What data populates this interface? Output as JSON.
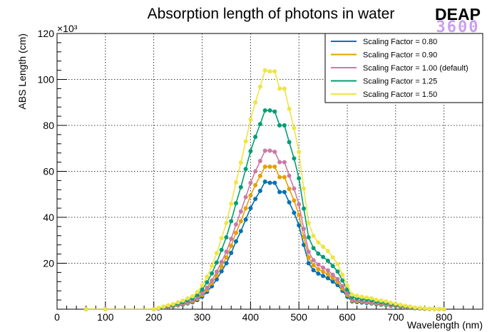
{
  "logo": {
    "top": "DEAP",
    "bottom": "3600"
  },
  "chart_data": {
    "type": "line",
    "title": "Absorption length of photons in water",
    "xlabel": "Wavelength (nm)",
    "ylabel": "ABS Length (cm)",
    "y_multiplier_label": "×10³",
    "xlim": [
      0,
      880
    ],
    "ylim": [
      0,
      120000
    ],
    "x_ticks": [
      0,
      100,
      200,
      300,
      400,
      500,
      600,
      700,
      800
    ],
    "y_ticks": [
      20000,
      40000,
      60000,
      80000,
      100000,
      120000
    ],
    "x_tick_labels": [
      "0",
      "100",
      "200",
      "300",
      "400",
      "500",
      "600",
      "700",
      "800"
    ],
    "y_tick_labels": [
      "20",
      "40",
      "60",
      "80",
      "100",
      "120"
    ],
    "grid": true,
    "legend_position": "top-right",
    "x": [
      60,
      100,
      200,
      210,
      220,
      230,
      240,
      250,
      260,
      270,
      280,
      290,
      300,
      310,
      320,
      330,
      340,
      350,
      360,
      370,
      380,
      390,
      400,
      410,
      420,
      430,
      440,
      450,
      460,
      470,
      480,
      490,
      500,
      510,
      520,
      530,
      540,
      550,
      560,
      570,
      580,
      590,
      600,
      610,
      620,
      630,
      640,
      650,
      660,
      670,
      680,
      690,
      700,
      710,
      720,
      730,
      740,
      750,
      760,
      770,
      780,
      790,
      800
    ],
    "series": [
      {
        "name": "Scaling Factor = 0.80",
        "color": "#0072b2",
        "values": [
          0,
          0,
          0,
          300,
          600,
          900,
          1200,
          1600,
          2000,
          2500,
          3000,
          4000,
          5500,
          7500,
          10000,
          13000,
          16500,
          20000,
          24500,
          29500,
          34000,
          39000,
          44000,
          48000,
          51500,
          55500,
          55000,
          55000,
          51000,
          51000,
          46500,
          42000,
          36500,
          28000,
          20000,
          17000,
          15500,
          14500,
          13500,
          12000,
          10500,
          8000,
          5500,
          3400,
          3100,
          2900,
          2700,
          2500,
          2200,
          2000,
          1800,
          1500,
          1300,
          1000,
          800,
          600,
          400,
          300,
          200,
          100,
          50,
          20,
          0
        ]
      },
      {
        "name": "Scaling Factor = 0.90",
        "color": "#e69f00",
        "values": [
          0,
          0,
          0,
          340,
          680,
          1000,
          1350,
          1800,
          2250,
          2800,
          3400,
          4500,
          6200,
          8400,
          11300,
          14600,
          18600,
          22500,
          27600,
          33200,
          38300,
          43900,
          49500,
          54000,
          58000,
          62000,
          62000,
          62000,
          57500,
          57500,
          52300,
          47300,
          41100,
          31500,
          22500,
          19100,
          17400,
          16300,
          15200,
          13500,
          11800,
          9000,
          6200,
          3800,
          3500,
          3300,
          3000,
          2800,
          2500,
          2250,
          2000,
          1700,
          1450,
          1100,
          900,
          680,
          450,
          340,
          230,
          110,
          60,
          20,
          0
        ]
      },
      {
        "name": "Scaling Factor = 1.00 (default)",
        "color": "#cc79a7",
        "values": [
          0,
          0,
          0,
          380,
          750,
          1100,
          1500,
          2000,
          2500,
          3100,
          3750,
          5000,
          6900,
          9400,
          12500,
          16300,
          20600,
          25000,
          30600,
          36900,
          42500,
          48800,
          55000,
          60000,
          64500,
          69000,
          69000,
          68500,
          64000,
          64000,
          58100,
          52500,
          45600,
          35000,
          25000,
          21300,
          19400,
          18100,
          16900,
          15000,
          13100,
          10000,
          6900,
          4250,
          3900,
          3600,
          3400,
          3100,
          2750,
          2500,
          2250,
          1900,
          1600,
          1250,
          1000,
          750,
          500,
          380,
          250,
          130,
          60,
          25,
          0
        ]
      },
      {
        "name": "Scaling Factor = 1.25",
        "color": "#009e73",
        "values": [
          0,
          0,
          0,
          470,
          940,
          1400,
          1900,
          2500,
          3100,
          3900,
          4700,
          6250,
          8600,
          11700,
          15600,
          20300,
          25800,
          31300,
          38300,
          46100,
          53100,
          61000,
          68800,
          75000,
          80600,
          86500,
          86500,
          86000,
          80000,
          80000,
          72700,
          65600,
          57000,
          43800,
          31300,
          26600,
          24200,
          22700,
          21100,
          18800,
          16400,
          12500,
          8600,
          5300,
          4800,
          4500,
          4200,
          3900,
          3400,
          3100,
          2800,
          2300,
          2000,
          1600,
          1250,
          940,
          630,
          470,
          310,
          160,
          80,
          30,
          0
        ]
      },
      {
        "name": "Scaling Factor = 1.50",
        "color": "#f0e442",
        "values": [
          0,
          0,
          0,
          560,
          1130,
          1700,
          2250,
          3000,
          3750,
          4700,
          5600,
          7500,
          10300,
          14100,
          18800,
          24400,
          30900,
          37500,
          45900,
          55300,
          63800,
          73100,
          82500,
          90000,
          96800,
          104000,
          103500,
          103500,
          96000,
          96000,
          87200,
          78800,
          68400,
          52500,
          37500,
          31900,
          29100,
          27200,
          25300,
          22500,
          19700,
          15000,
          10300,
          6400,
          5800,
          5400,
          5100,
          4700,
          4100,
          3750,
          3400,
          2800,
          2400,
          1900,
          1500,
          1130,
          750,
          560,
          380,
          190,
          90,
          40,
          0
        ]
      }
    ]
  }
}
